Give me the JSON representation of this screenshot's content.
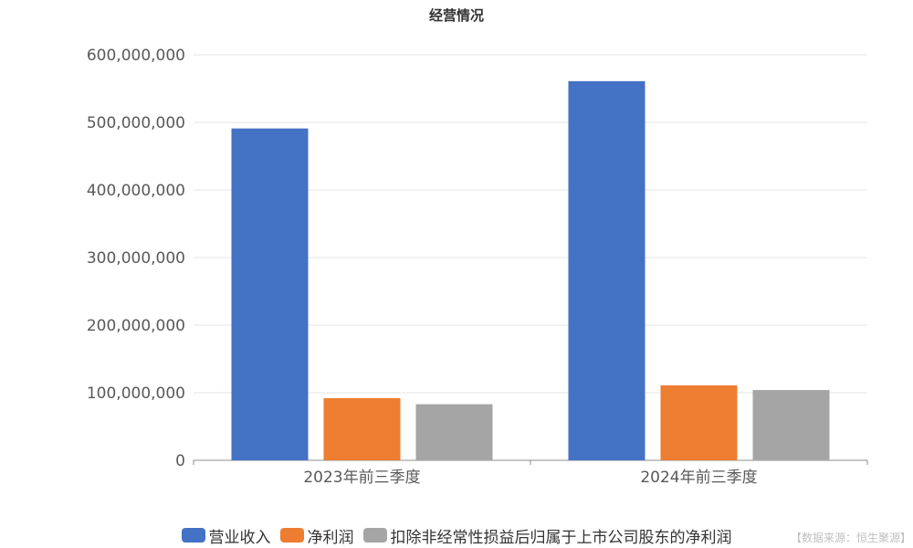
{
  "title": "经营情况",
  "source_note": "【数据来源：恒生聚源】",
  "chart_data": {
    "type": "bar",
    "title": "经营情况",
    "categories": [
      "2023年前三季度",
      "2024年前三季度"
    ],
    "series": [
      {
        "name": "营业收入",
        "values": [
          491000000,
          561000000
        ],
        "color": "#4472c4"
      },
      {
        "name": "净利润",
        "values": [
          92000000,
          111000000
        ],
        "color": "#ed7d31"
      },
      {
        "name": "扣除非经常性损益后归属于上市公司股东的净利润",
        "values": [
          83000000,
          104000000
        ],
        "color": "#a5a5a5"
      }
    ],
    "ylim": [
      0,
      600000000
    ],
    "yticks": [
      0,
      100000000,
      200000000,
      300000000,
      400000000,
      500000000,
      600000000
    ],
    "ytick_labels": [
      "0",
      "100,000,000",
      "200,000,000",
      "300,000,000",
      "400,000,000",
      "500,000,000",
      "600,000,000"
    ],
    "grid": true,
    "legend_position": "bottom"
  }
}
